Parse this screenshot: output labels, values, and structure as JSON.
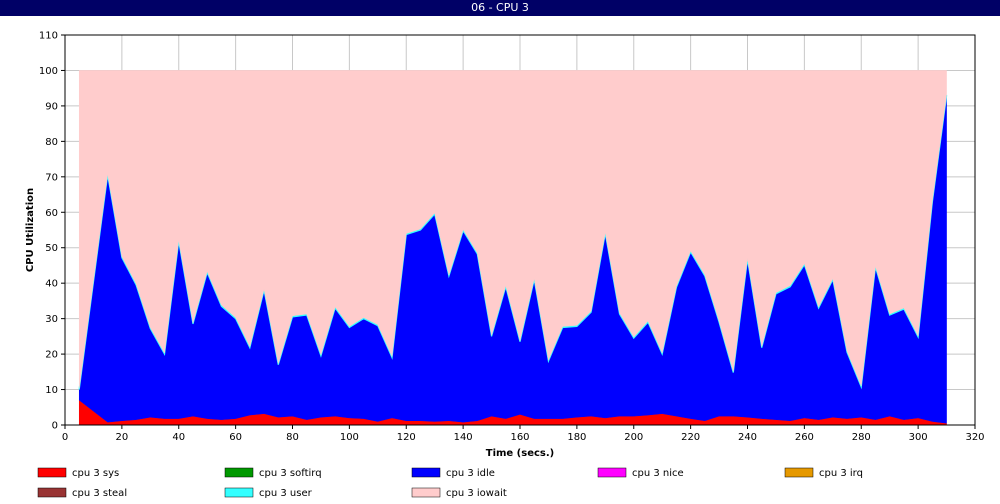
{
  "window": {
    "title": "06 - CPU 3"
  },
  "chart_data": {
    "type": "area",
    "stacked": true,
    "xlabel": "Time (secs.)",
    "ylabel": "CPU Utilization",
    "xlim": [
      0,
      320
    ],
    "ylim": [
      0,
      110
    ],
    "xticks": [
      0,
      20,
      40,
      60,
      80,
      100,
      120,
      140,
      160,
      180,
      200,
      220,
      240,
      260,
      280,
      300,
      320
    ],
    "yticks": [
      0,
      10,
      20,
      30,
      40,
      50,
      60,
      70,
      80,
      90,
      100,
      110
    ],
    "grid": true,
    "legend_position": "bottom",
    "x": [
      5,
      15,
      20,
      25,
      30,
      35,
      40,
      45,
      50,
      55,
      60,
      65,
      70,
      75,
      80,
      85,
      90,
      95,
      100,
      105,
      110,
      115,
      120,
      125,
      130,
      135,
      140,
      145,
      150,
      155,
      160,
      165,
      170,
      175,
      180,
      185,
      190,
      195,
      200,
      205,
      210,
      215,
      220,
      225,
      230,
      235,
      240,
      245,
      250,
      255,
      260,
      265,
      270,
      275,
      280,
      285,
      290,
      295,
      300,
      305,
      310
    ],
    "series": [
      {
        "name": "cpu 3 sys",
        "color": "#ff0000",
        "values": [
          7,
          0.8,
          1.2,
          1.5,
          2.2,
          1.8,
          1.8,
          2.5,
          1.8,
          1.5,
          1.8,
          2.8,
          3.2,
          2.2,
          2.5,
          1.5,
          2.2,
          2.5,
          2,
          1.8,
          1,
          2,
          1.2,
          1.2,
          1,
          1.2,
          0.8,
          1.2,
          2.5,
          1.8,
          3,
          1.8,
          1.8,
          1.8,
          2.2,
          2.5,
          2,
          2.5,
          2.5,
          2.8,
          3.2,
          2.5,
          1.8,
          1.2,
          2.5,
          2.5,
          2.2,
          1.8,
          1.5,
          1.2,
          2,
          1.5,
          2.2,
          1.8,
          2.2,
          1.5,
          2.5,
          1.5,
          2,
          1,
          0.5
        ]
      },
      {
        "name": "cpu 3 softirq",
        "color": "#009900",
        "values": [
          0,
          0,
          0,
          0,
          0,
          0,
          0,
          0,
          0,
          0,
          0,
          0,
          0,
          0,
          0,
          0,
          0,
          0,
          0,
          0,
          0,
          0,
          0,
          0,
          0,
          0,
          0,
          0,
          0,
          0,
          0,
          0,
          0,
          0,
          0,
          0,
          0,
          0,
          0,
          0,
          0,
          0,
          0,
          0,
          0,
          0,
          0,
          0,
          0,
          0,
          0,
          0,
          0,
          0,
          0,
          0,
          0,
          0,
          0,
          0,
          0
        ]
      },
      {
        "name": "cpu 3 idle",
        "color": "#0000ff",
        "values": [
          3,
          69.7,
          46,
          38,
          25,
          18.2,
          50,
          26,
          41.2,
          32,
          28.2,
          19,
          34.8,
          14.8,
          28,
          29.5,
          17.3,
          30.5,
          25.5,
          28.2,
          27,
          17,
          52.5,
          53.8,
          58.5,
          40.8,
          54,
          47,
          22.5,
          37.2,
          20.5,
          39.2,
          16.2,
          25.7,
          25.6,
          29.3,
          52,
          28.8,
          22,
          26.2,
          16.8,
          36.3,
          47,
          40.8,
          26.5,
          12.3,
          44.5,
          20,
          35.5,
          37.8,
          43.2,
          31.5,
          38.8,
          18.7,
          8.5,
          43,
          28.5,
          31.2,
          22.8,
          61.8,
          92.3
        ]
      },
      {
        "name": "cpu 3 nice",
        "color": "#ff00ff",
        "values": [
          0,
          0,
          0,
          0,
          0,
          0,
          0,
          0,
          0,
          0,
          0,
          0,
          0,
          0,
          0,
          0,
          0,
          0,
          0,
          0,
          0,
          0,
          0,
          0,
          0,
          0,
          0,
          0,
          0,
          0,
          0,
          0,
          0,
          0,
          0,
          0,
          0,
          0,
          0,
          0,
          0,
          0,
          0,
          0,
          0,
          0,
          0,
          0,
          0,
          0,
          0,
          0,
          0,
          0,
          0,
          0,
          0,
          0,
          0,
          0,
          0
        ]
      },
      {
        "name": "cpu 3 irq",
        "color": "#e69900",
        "values": [
          0,
          0,
          0,
          0,
          0,
          0,
          0,
          0,
          0,
          0,
          0,
          0,
          0,
          0,
          0,
          0,
          0,
          0,
          0,
          0,
          0,
          0,
          0,
          0,
          0,
          0,
          0,
          0,
          0,
          0,
          0,
          0,
          0,
          0,
          0,
          0,
          0,
          0,
          0,
          0,
          0,
          0,
          0,
          0,
          0,
          0,
          0,
          0,
          0,
          0,
          0,
          0,
          0,
          0,
          0,
          0,
          0,
          0,
          0,
          0,
          0
        ]
      },
      {
        "name": "cpu 3 steal",
        "color": "#993333",
        "values": [
          0,
          0,
          0,
          0,
          0,
          0,
          0,
          0,
          0,
          0,
          0,
          0,
          0,
          0,
          0,
          0,
          0,
          0,
          0,
          0,
          0,
          0,
          0,
          0,
          0,
          0,
          0,
          0,
          0,
          0,
          0,
          0,
          0,
          0,
          0,
          0,
          0,
          0,
          0,
          0,
          0,
          0,
          0,
          0,
          0,
          0,
          0,
          0,
          0,
          0,
          0,
          0,
          0,
          0,
          0,
          0,
          0,
          0,
          0,
          0,
          0
        ]
      },
      {
        "name": "cpu 3 user",
        "color": "#33ffff",
        "values": [
          0.3,
          0.3,
          0.3,
          0.3,
          0.3,
          0.3,
          0.3,
          0.3,
          0.3,
          0.3,
          0.3,
          0.3,
          0.3,
          0.3,
          0.3,
          0.3,
          0.3,
          0.3,
          0.3,
          0.3,
          0.3,
          0.3,
          0.3,
          0.3,
          0.3,
          0.3,
          0.3,
          0.3,
          0.3,
          0.3,
          0.3,
          0.3,
          0.3,
          0.3,
          0.3,
          0.3,
          0.3,
          0.3,
          0.3,
          0.3,
          0.3,
          0.3,
          0.3,
          0.3,
          0.3,
          0.3,
          0.3,
          0.3,
          0.3,
          0.3,
          0.3,
          0.3,
          0.3,
          0.3,
          0.3,
          0.3,
          0.3,
          0.3,
          0.3,
          0.3,
          0.3
        ]
      },
      {
        "name": "cpu 3 iowait",
        "color": "#ffcccc",
        "values": [
          89.7,
          29.2,
          52.5,
          60.2,
          72.5,
          79.7,
          47.9,
          71.2,
          56.7,
          66.2,
          69.7,
          77.9,
          61.7,
          82.7,
          69.2,
          68.7,
          80.2,
          66.7,
          72.2,
          69.7,
          71.7,
          80.7,
          46,
          44.7,
          40.2,
          57.7,
          44.9,
          51.5,
          74.7,
          60.7,
          76.2,
          58.7,
          81.7,
          72.2,
          71.9,
          67.9,
          45.7,
          68.4,
          75.2,
          70.7,
          79.7,
          60.9,
          50.9,
          57.7,
          70.7,
          84.9,
          53,
          77.9,
          62.7,
          60.7,
          54.5,
          66.7,
          58.7,
          79.2,
          89,
          55.2,
          68.7,
          67,
          74.9,
          36.9,
          6.9
        ]
      }
    ]
  }
}
